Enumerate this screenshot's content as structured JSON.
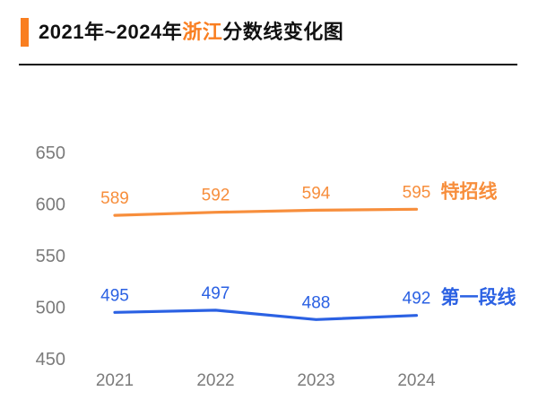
{
  "header": {
    "title_parts": [
      "2021年~2024年",
      "浙江",
      "分数线变化图"
    ],
    "accent_color": "#F97E20",
    "title_color": "#111111",
    "divider_color": "#111111"
  },
  "chart_data": {
    "type": "line",
    "title": "2021年~2024年浙江分数线变化图",
    "categories": [
      "2021",
      "2022",
      "2023",
      "2024"
    ],
    "series": [
      {
        "name": "特招线",
        "values": [
          589,
          592,
          594,
          595
        ],
        "color": "#F78E3C"
      },
      {
        "name": "第一段线",
        "values": [
          495,
          497,
          488,
          492
        ],
        "color": "#2B61E3"
      }
    ],
    "yticks": [
      650,
      600,
      550,
      500,
      450
    ],
    "ylim": [
      450,
      650
    ],
    "xlabel": "",
    "ylabel": "",
    "grid": false,
    "axis_label_color": "#7B7B7B",
    "legend_position": "right-of-line-end",
    "data_labels": true
  }
}
